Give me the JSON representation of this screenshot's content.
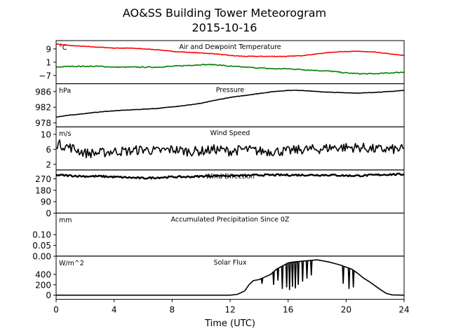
{
  "figure": {
    "title": "AO&SS Building Tower Meteorogram",
    "subtitle": "2015-10-16",
    "xlabel": "Time (UTC)",
    "xlim": [
      0,
      24
    ],
    "xticks": [
      0,
      4,
      8,
      12,
      16,
      20,
      24
    ]
  },
  "chart_data": [
    {
      "type": "line",
      "title": "Air and Dewpoint Temperature",
      "ylabel": "°C",
      "ylim": [
        -12,
        14
      ],
      "yticks": [
        9,
        1,
        -7
      ],
      "ytick_labels": [
        "9",
        "1",
        "−7"
      ],
      "series": [
        {
          "color": "#ff0000",
          "noise": 0.15,
          "x": [
            0,
            1,
            2,
            3,
            4,
            5,
            6,
            7,
            8,
            9,
            10,
            11,
            12,
            13,
            14,
            15,
            16,
            17,
            18,
            19,
            20,
            21,
            22,
            23,
            24
          ],
          "y": [
            12,
            11,
            10.5,
            10,
            9.5,
            9.5,
            9,
            8.5,
            7.5,
            7,
            6.5,
            6,
            5,
            4.5,
            4.5,
            4.5,
            4.5,
            5,
            6,
            7,
            7.5,
            7.5,
            7,
            6,
            5
          ]
        },
        {
          "color": "#008000",
          "noise": 0.3,
          "x": [
            0,
            1,
            2,
            3,
            4,
            5,
            6,
            7,
            8,
            9,
            10,
            11,
            12,
            13,
            14,
            15,
            16,
            17,
            18,
            19,
            20,
            21,
            22,
            23,
            24
          ],
          "y": [
            -2,
            -1.5,
            -1.5,
            -1.5,
            -2,
            -2,
            -2,
            -2,
            -1.5,
            -1,
            -0.5,
            -0.5,
            -1.5,
            -2,
            -2.5,
            -3,
            -3,
            -3.5,
            -4,
            -4.5,
            -5.5,
            -6,
            -6,
            -5.5,
            -5
          ]
        }
      ]
    },
    {
      "type": "line",
      "title": "Pressure",
      "ylabel": "hPa",
      "ylim": [
        977,
        988
      ],
      "yticks": [
        986,
        982,
        978
      ],
      "series": [
        {
          "color": "#000000",
          "noise": 0.05,
          "x": [
            0,
            1,
            2,
            3,
            4,
            5,
            6,
            7,
            8,
            9,
            10,
            11,
            12,
            13,
            14,
            15,
            16,
            17,
            18,
            19,
            20,
            21,
            22,
            23,
            24
          ],
          "y": [
            979.5,
            980.0,
            980.4,
            980.8,
            981.1,
            981.3,
            981.5,
            981.7,
            982.1,
            982.5,
            983.0,
            983.8,
            984.5,
            985.0,
            985.5,
            986.0,
            986.3,
            986.3,
            986.0,
            985.8,
            985.7,
            985.6,
            985.8,
            986.0,
            986.3
          ]
        }
      ]
    },
    {
      "type": "line",
      "title": "Wind Speed",
      "ylabel": "m/s",
      "ylim": [
        0.5,
        12
      ],
      "yticks": [
        10,
        6,
        2
      ],
      "series": [
        {
          "color": "#000000",
          "noise": 1.3,
          "x": [
            0,
            1,
            2,
            3,
            4,
            5,
            6,
            7,
            8,
            9,
            10,
            11,
            12,
            13,
            14,
            15,
            16,
            17,
            18,
            19,
            20,
            21,
            22,
            23,
            24
          ],
          "y": [
            7.5,
            6.5,
            5,
            5,
            5.5,
            5.5,
            6,
            5.5,
            6,
            5.5,
            5.5,
            6,
            5.5,
            6,
            5.5,
            5.5,
            5.5,
            6,
            6,
            6.5,
            6.5,
            6.5,
            6,
            6,
            6
          ]
        }
      ]
    },
    {
      "type": "line",
      "title": "Wind Direction",
      "ylabel": "",
      "ylim": [
        0,
        340
      ],
      "yticks": [
        270,
        180,
        90,
        0
      ],
      "series": [
        {
          "color": "#000000",
          "noise": 7,
          "x": [
            0,
            1,
            2,
            3,
            4,
            5,
            6,
            7,
            8,
            9,
            10,
            11,
            12,
            13,
            14,
            15,
            16,
            17,
            18,
            19,
            20,
            21,
            22,
            23,
            24
          ],
          "y": [
            300,
            295,
            290,
            290,
            285,
            280,
            275,
            280,
            285,
            285,
            290,
            295,
            295,
            295,
            300,
            300,
            300,
            300,
            300,
            300,
            295,
            295,
            300,
            305,
            305
          ]
        }
      ]
    },
    {
      "type": "line",
      "title": "Accumulated Precipitation Since 0Z",
      "ylabel": "mm",
      "ylim": [
        0,
        0.2
      ],
      "yticks": [
        0.1,
        0.05,
        0.0
      ],
      "ytick_labels": [
        "0.10",
        "0.05",
        "0.00"
      ],
      "series": [
        {
          "color": "#000000",
          "noise": 0,
          "x": [
            0,
            24
          ],
          "y": [
            0,
            0
          ]
        }
      ]
    },
    {
      "type": "line",
      "title": "Solar Flux",
      "ylabel": "W/m^2",
      "ylim": [
        -80,
        750
      ],
      "yticks": [
        400,
        200,
        0
      ],
      "series": [
        {
          "color": "#000000",
          "noise": 0,
          "x": [
            0,
            12,
            12.5,
            13,
            13.3,
            13.6,
            14,
            14.4,
            14.8,
            15.2,
            15.6,
            16,
            16.4,
            16.8,
            17.2,
            17.6,
            18,
            18.4,
            18.8,
            19.2,
            19.6,
            20,
            20.4,
            20.8,
            21.2,
            21.6,
            22,
            22.4,
            22.8,
            23.2,
            24
          ],
          "y": [
            0,
            0,
            15,
            80,
            200,
            280,
            300,
            350,
            400,
            500,
            560,
            620,
            640,
            650,
            660,
            670,
            680,
            660,
            640,
            610,
            580,
            540,
            500,
            420,
            330,
            260,
            180,
            100,
            30,
            5,
            0
          ]
        },
        {
          "color": "#000000",
          "noise": 0,
          "dips": true,
          "x": [
            14.2,
            15.0,
            15.3,
            15.6,
            15.9,
            16.1,
            16.3,
            16.5,
            16.7,
            17.0,
            17.3,
            17.6,
            19.8,
            20.2,
            20.5
          ],
          "y": [
            220,
            200,
            280,
            120,
            150,
            100,
            160,
            130,
            200,
            260,
            320,
            380,
            220,
            120,
            150
          ]
        }
      ]
    }
  ]
}
